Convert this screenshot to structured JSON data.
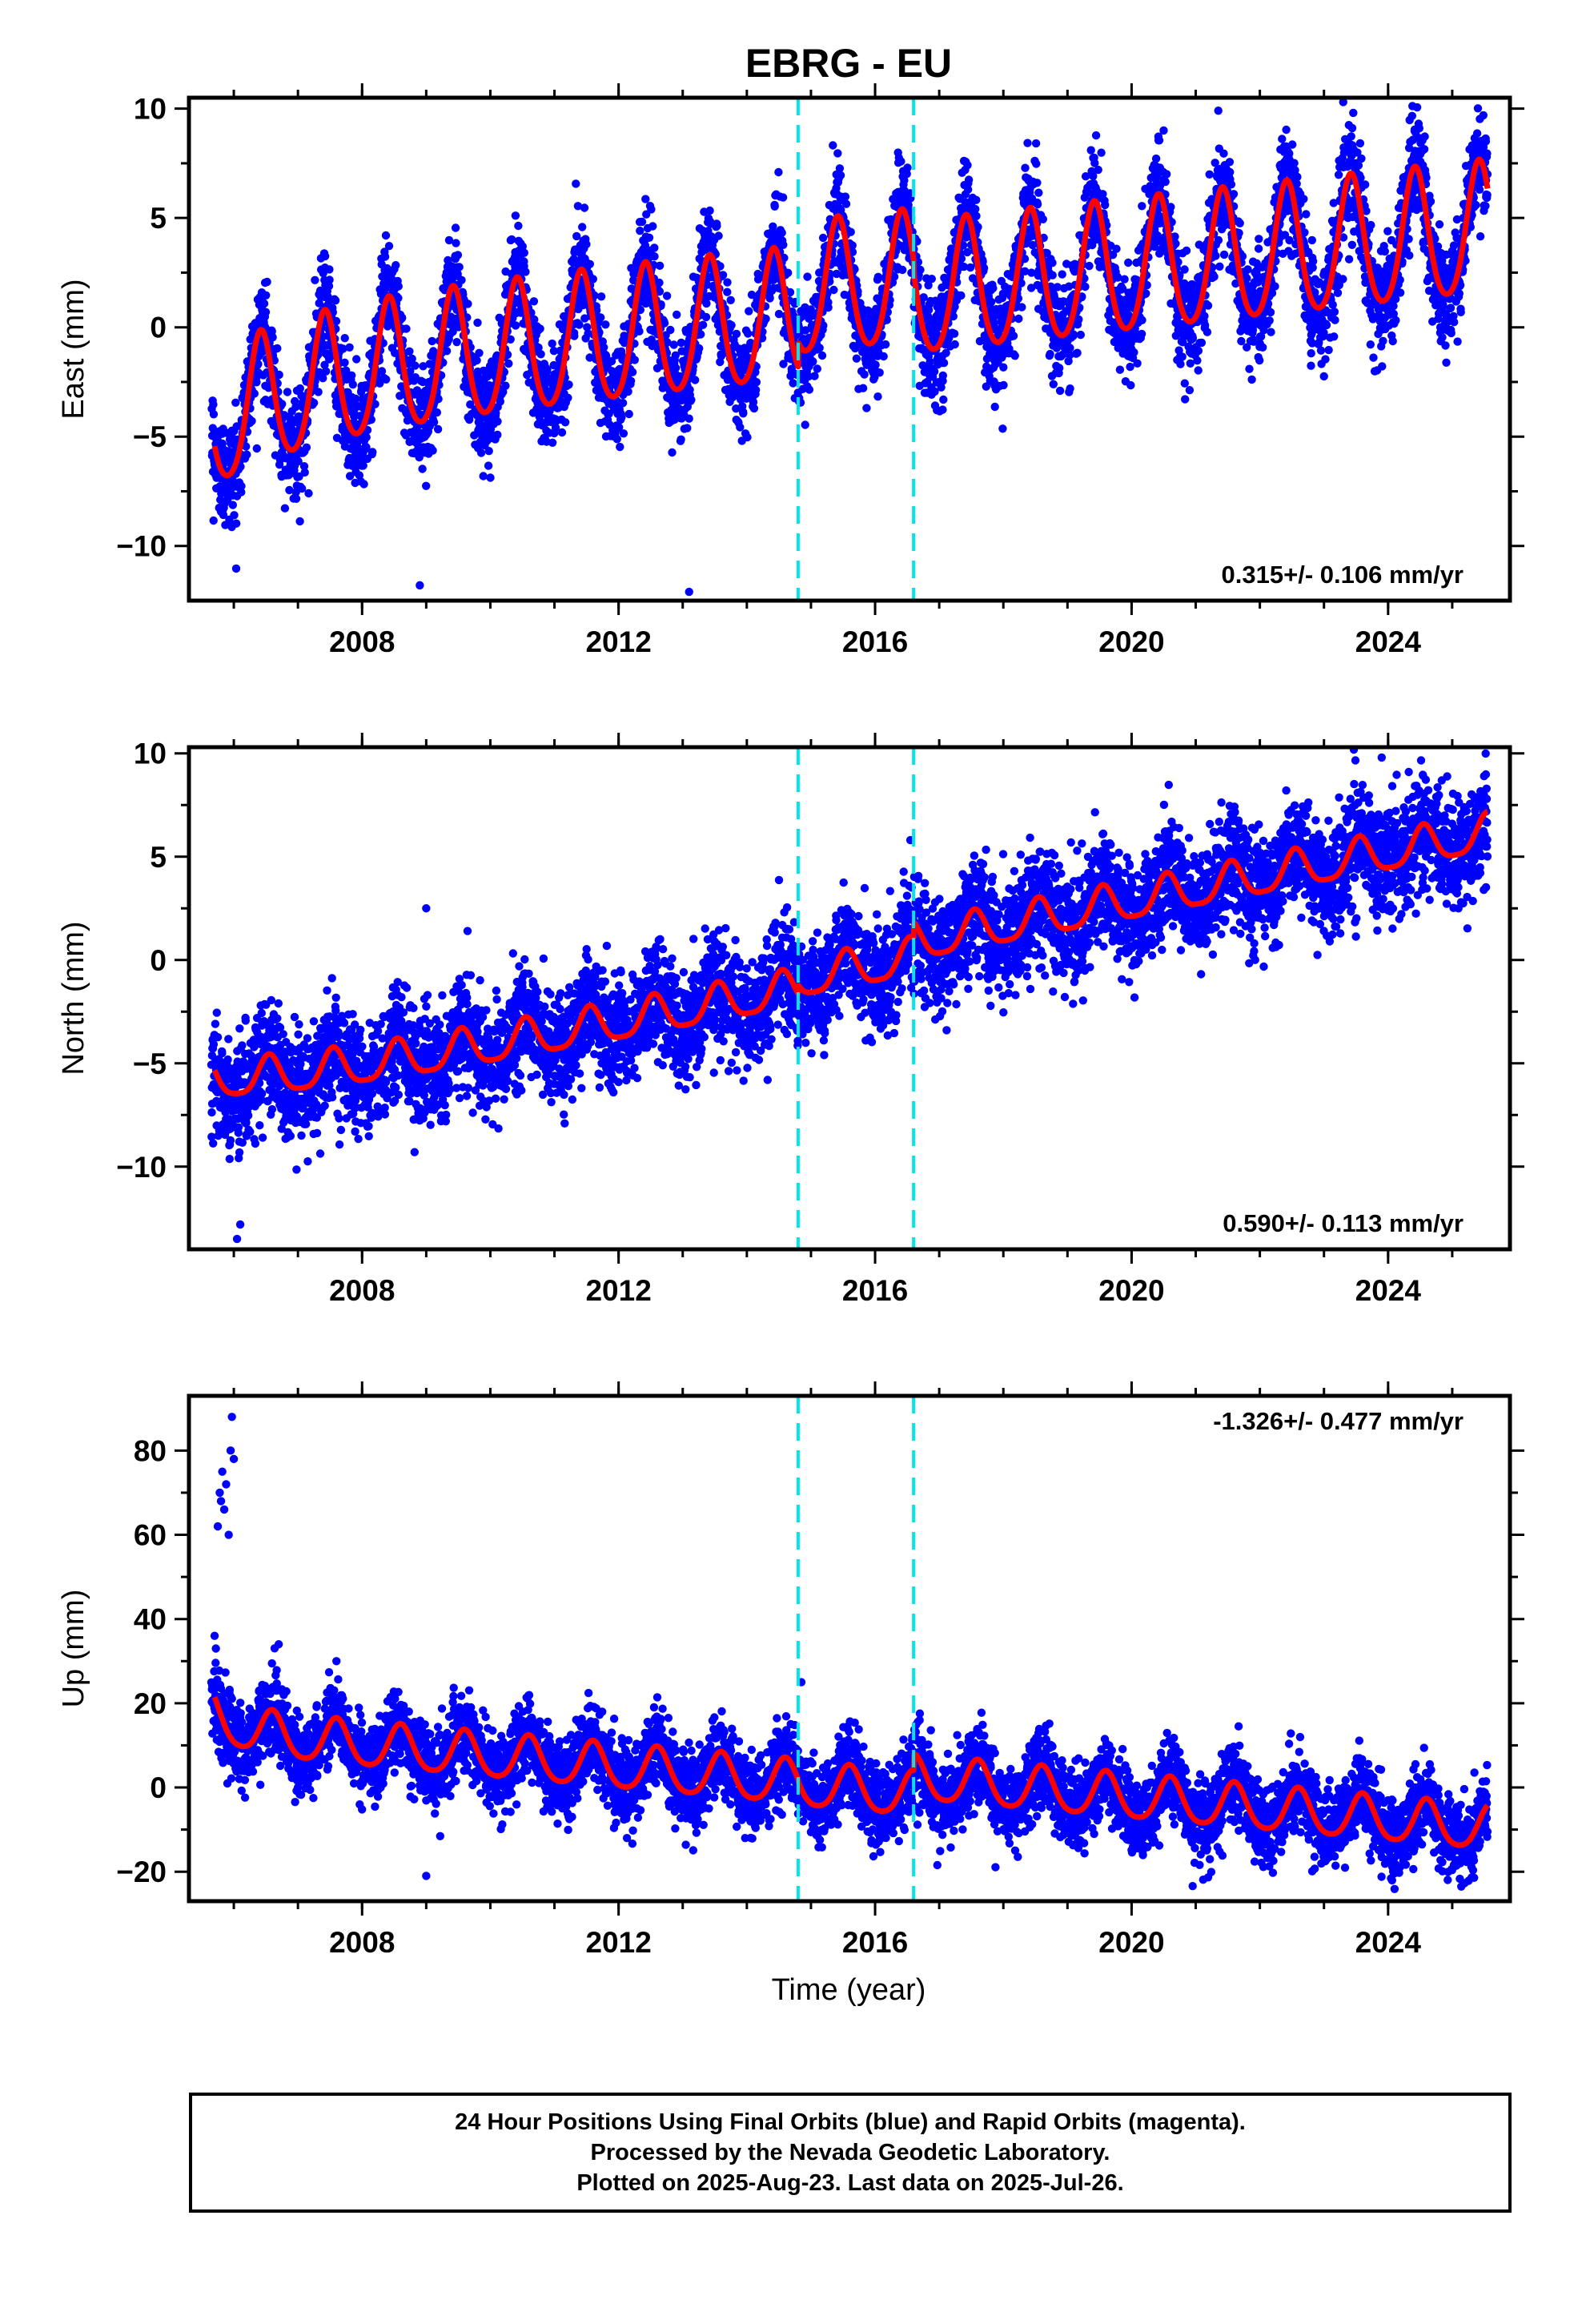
{
  "figure": {
    "title": "EBRG - EU",
    "xlabel": "Time (year)",
    "footer": [
      "24 Hour Positions Using Final Orbits (blue) and Rapid Orbits (magenta).",
      "Processed by the Nevada Geodetic Laboratory.",
      "Plotted on 2025-Aug-23. Last data on 2025-Jul-26."
    ],
    "colors": {
      "data": "#0000ff",
      "model": "#ff0000",
      "event": "#00e5ee",
      "frame": "#000000"
    }
  },
  "chart_data": [
    {
      "type": "scatter",
      "component": "East",
      "ylabel": "East (mm)",
      "rate_label": "0.315+/- 0.106 mm/yr",
      "rate_position": "bottom-right",
      "xlim": [
        2005.3,
        2025.9
      ],
      "ylim": [
        -12.5,
        10.5
      ],
      "xticks": [
        2008,
        2012,
        2016,
        2020,
        2024
      ],
      "xtick_labels": [
        "2008",
        "2012",
        "2016",
        "2020",
        "2024"
      ],
      "yticks": [
        -10,
        -5,
        0,
        5,
        10
      ],
      "ytick_labels": [
        "−10",
        "−5",
        "0",
        "5",
        "10"
      ],
      "event_lines": [
        2014.8,
        2016.6
      ],
      "model": {
        "x_start": 2005.7,
        "x_end": 2025.55,
        "segments": [
          {
            "from": 2005.7,
            "to": 2014.8,
            "offset_at_start": -2.5,
            "rate": 0.315
          },
          {
            "from": 2014.8,
            "to": 2016.6,
            "offset_at_start": 1.5,
            "rate": 0.315
          },
          {
            "from": 2016.6,
            "to": 2025.55,
            "offset_at_start": 1.5,
            "rate": 0.315
          }
        ],
        "early_transient": {
          "amplitude": -2.0,
          "decay_years": 1.5
        },
        "annual_amplitude": 3.0,
        "annual_phase_peak": 0.42,
        "semiannual_amplitude": 0.4
      },
      "scatter": {
        "noise": 1.2,
        "x_start": 2005.65,
        "x_end": 2025.55
      },
      "outliers": [
        [
          2008.9,
          -11.8
        ],
        [
          2013.1,
          -12.1
        ],
        [
          2023.3,
          10.3
        ],
        [
          2020.5,
          9.0
        ]
      ]
    },
    {
      "type": "scatter",
      "component": "North",
      "ylabel": "North (mm)",
      "rate_label": "0.590+/- 0.113 mm/yr",
      "rate_position": "bottom-right",
      "xlim": [
        2005.3,
        2025.9
      ],
      "ylim": [
        -14,
        10.3
      ],
      "xticks": [
        2008,
        2012,
        2016,
        2020,
        2024
      ],
      "xtick_labels": [
        "2008",
        "2012",
        "2016",
        "2020",
        "2024"
      ],
      "yticks": [
        -10,
        -5,
        0,
        5,
        10
      ],
      "ytick_labels": [
        "−10",
        "−5",
        "0",
        "5",
        "10"
      ],
      "event_lines": [
        2014.8,
        2016.6
      ],
      "model": {
        "x_start": 2005.7,
        "x_end": 2025.55,
        "segments": [
          {
            "from": 2005.7,
            "to": 2014.8,
            "offset_at_start": -6.8,
            "rate": 0.59
          },
          {
            "from": 2014.8,
            "to": 2016.6,
            "offset_at_start": -1.0,
            "rate": 0.59
          },
          {
            "from": 2016.6,
            "to": 2025.55,
            "offset_at_start": 0.8,
            "rate": 0.59
          }
        ],
        "early_transient": {
          "amplitude": 1.0,
          "decay_years": 2.0
        },
        "annual_amplitude": 0.9,
        "annual_phase_peak": 0.55,
        "semiannual_amplitude": 0.2
      },
      "scatter": {
        "noise": 1.3,
        "x_start": 2005.65,
        "x_end": 2025.55
      },
      "outliers": [
        [
          2006.05,
          -13.5
        ],
        [
          2006.1,
          -12.8
        ],
        [
          2016.55,
          5.8
        ],
        [
          2023.9,
          9.8
        ],
        [
          2009.0,
          2.5
        ]
      ]
    },
    {
      "type": "scatter",
      "component": "Up",
      "ylabel": "Up (mm)",
      "rate_label": "-1.326+/- 0.477 mm/yr",
      "rate_position": "top-right",
      "xlim": [
        2005.3,
        2025.9
      ],
      "ylim": [
        -27,
        93
      ],
      "xticks": [
        2008,
        2012,
        2016,
        2020,
        2024
      ],
      "xtick_labels": [
        "2008",
        "2012",
        "2016",
        "2020",
        "2024"
      ],
      "yticks": [
        -20,
        0,
        20,
        40,
        60,
        80
      ],
      "ytick_labels": [
        "−20",
        "0",
        "20",
        "40",
        "60",
        "80"
      ],
      "event_lines": [
        2014.8,
        2016.6
      ],
      "model": {
        "x_start": 2005.7,
        "x_end": 2025.55,
        "segments": [
          {
            "from": 2005.7,
            "to": 2014.8,
            "offset_at_start": 13.0,
            "rate": -1.326
          },
          {
            "from": 2014.8,
            "to": 2016.6,
            "offset_at_start": 0.5,
            "rate": -1.326
          },
          {
            "from": 2016.6,
            "to": 2025.55,
            "offset_at_start": 2.0,
            "rate": -1.326
          }
        ],
        "early_transient": {
          "amplitude": 4.0,
          "decay_years": 0.5
        },
        "annual_amplitude": 5.2,
        "annual_phase_peak": 0.6,
        "semiannual_amplitude": 0.8
      },
      "scatter": {
        "noise": 4.6,
        "x_start": 2005.65,
        "x_end": 2025.55
      },
      "outliers": [
        [
          2005.75,
          62
        ],
        [
          2005.78,
          70
        ],
        [
          2005.82,
          75
        ],
        [
          2005.85,
          66
        ],
        [
          2005.88,
          72
        ],
        [
          2005.92,
          60
        ],
        [
          2005.95,
          80
        ],
        [
          2005.97,
          88
        ],
        [
          2006.0,
          78
        ],
        [
          2005.8,
          68
        ],
        [
          2005.7,
          36
        ],
        [
          2005.72,
          33
        ],
        [
          2009.0,
          -21
        ],
        [
          2014.85,
          25
        ],
        [
          2006.7,
          34
        ],
        [
          2007.6,
          30
        ]
      ]
    }
  ]
}
